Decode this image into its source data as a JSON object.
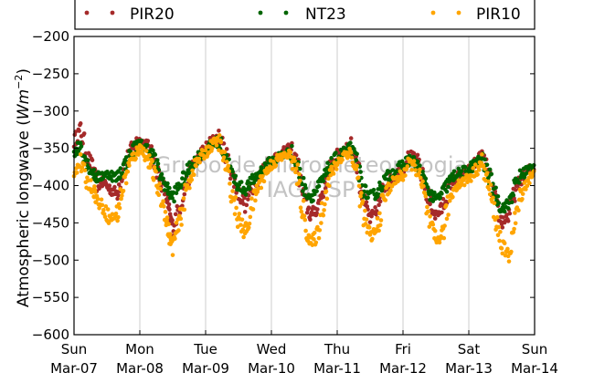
{
  "chart_data": {
    "type": "scatter",
    "title": "",
    "xlabel": "",
    "ylabel_text": "Atmospheric longwave (",
    "ylabel_unit_w": "W",
    "ylabel_unit_m": "m",
    "ylabel_unit_exp": "−2",
    "ylabel_close": ")",
    "ylim": [
      -600,
      -200
    ],
    "yticks": [
      -200,
      -250,
      -300,
      -350,
      -400,
      -450,
      -500,
      -550,
      -600
    ],
    "ytick_labels": [
      "−200",
      "−250",
      "−300",
      "−350",
      "−400",
      "−450",
      "−500",
      "−550",
      "−600"
    ],
    "xlim": [
      "2015-03-07",
      "2015-03-14"
    ],
    "xtick_labels": [
      {
        "day": "Sun",
        "date": "Mar-07"
      },
      {
        "day": "Mon",
        "date": "Mar-08"
      },
      {
        "day": "Tue",
        "date": "Mar-09"
      },
      {
        "day": "Wed",
        "date": "Mar-10"
      },
      {
        "day": "Thu",
        "date": "Mar-11"
      },
      {
        "day": "Fri",
        "date": "Mar-12"
      },
      {
        "day": "Sat",
        "date": "Mar-13"
      },
      {
        "day": "Sun",
        "date": "Mar-14"
      }
    ],
    "grid": "vertical",
    "legend_position": "top",
    "watermark": [
      "Grupo de Micrometeorologia",
      "IAG/USP"
    ],
    "series": [
      {
        "name": "PIR20",
        "color": "#a52a2a",
        "x_day": [
          0.0,
          0.1,
          0.2,
          0.3,
          0.35,
          0.45,
          0.55,
          0.65,
          0.75,
          0.85,
          0.95,
          1.0,
          1.1,
          1.2,
          1.3,
          1.4,
          1.45,
          1.5,
          1.6,
          1.7,
          1.8,
          1.9,
          2.0,
          2.1,
          2.2,
          2.3,
          2.4,
          2.5,
          2.6,
          2.7,
          2.8,
          2.9,
          3.0,
          3.1,
          3.2,
          3.3,
          3.4,
          3.5,
          3.6,
          3.7,
          3.8,
          3.9,
          4.0,
          4.1,
          4.2,
          4.3,
          4.4,
          4.5,
          4.6,
          4.7,
          4.8,
          4.9,
          5.0,
          5.1,
          5.2,
          5.3,
          5.4,
          5.5,
          5.6,
          5.7,
          5.8,
          5.9,
          6.0,
          6.1,
          6.2,
          6.3,
          6.4,
          6.5,
          6.6,
          6.7,
          6.8,
          6.9,
          7.0
        ],
        "y": [
          -340,
          -325,
          -360,
          -380,
          -400,
          -395,
          -405,
          -410,
          -380,
          -355,
          -340,
          -340,
          -345,
          -360,
          -390,
          -410,
          -440,
          -455,
          -430,
          -400,
          -375,
          -360,
          -350,
          -340,
          -335,
          -355,
          -385,
          -410,
          -425,
          -405,
          -390,
          -375,
          -365,
          -360,
          -355,
          -350,
          -375,
          -420,
          -440,
          -430,
          -400,
          -375,
          -360,
          -350,
          -345,
          -370,
          -420,
          -445,
          -435,
          -405,
          -390,
          -385,
          -375,
          -360,
          -365,
          -390,
          -420,
          -440,
          -430,
          -400,
          -390,
          -385,
          -380,
          -370,
          -360,
          -385,
          -420,
          -450,
          -440,
          -410,
          -390,
          -380,
          -375
        ]
      },
      {
        "name": "NT23",
        "color": "#006400",
        "x_day": [
          0.0,
          0.1,
          0.2,
          0.3,
          0.35,
          0.45,
          0.55,
          0.65,
          0.75,
          0.85,
          0.95,
          1.0,
          1.1,
          1.2,
          1.3,
          1.4,
          1.45,
          1.5,
          1.6,
          1.7,
          1.8,
          1.9,
          2.0,
          2.1,
          2.2,
          2.3,
          2.4,
          2.5,
          2.6,
          2.7,
          2.8,
          2.9,
          3.0,
          3.1,
          3.2,
          3.3,
          3.4,
          3.5,
          3.6,
          3.7,
          3.8,
          3.9,
          4.0,
          4.1,
          4.2,
          4.3,
          4.4,
          4.5,
          4.6,
          4.7,
          4.8,
          4.9,
          5.0,
          5.1,
          5.2,
          5.3,
          5.4,
          5.5,
          5.6,
          5.7,
          5.8,
          5.9,
          6.0,
          6.1,
          6.2,
          6.3,
          6.4,
          6.5,
          6.6,
          6.7,
          6.8,
          6.9,
          7.0
        ],
        "y": [
          -355,
          -345,
          -370,
          -385,
          -390,
          -385,
          -385,
          -390,
          -375,
          -360,
          -345,
          -345,
          -350,
          -360,
          -385,
          -400,
          -410,
          -415,
          -400,
          -385,
          -370,
          -360,
          -355,
          -345,
          -340,
          -360,
          -385,
          -400,
          -405,
          -395,
          -385,
          -375,
          -368,
          -362,
          -358,
          -355,
          -375,
          -405,
          -415,
          -405,
          -390,
          -372,
          -362,
          -355,
          -350,
          -370,
          -405,
          -415,
          -410,
          -395,
          -385,
          -380,
          -372,
          -365,
          -370,
          -390,
          -410,
          -420,
          -410,
          -395,
          -385,
          -382,
          -378,
          -370,
          -365,
          -385,
          -410,
          -430,
          -425,
          -400,
          -385,
          -378,
          -375
        ]
      },
      {
        "name": "PIR10",
        "color": "#ffa500",
        "x_day": [
          0.0,
          0.1,
          0.2,
          0.3,
          0.35,
          0.45,
          0.55,
          0.65,
          0.75,
          0.85,
          0.95,
          1.0,
          1.1,
          1.2,
          1.3,
          1.4,
          1.45,
          1.5,
          1.6,
          1.7,
          1.8,
          1.9,
          2.0,
          2.1,
          2.2,
          2.3,
          2.4,
          2.5,
          2.6,
          2.7,
          2.8,
          2.9,
          3.0,
          3.1,
          3.2,
          3.3,
          3.4,
          3.5,
          3.6,
          3.7,
          3.8,
          3.9,
          4.0,
          4.1,
          4.2,
          4.3,
          4.4,
          4.5,
          4.6,
          4.7,
          4.8,
          4.9,
          5.0,
          5.1,
          5.2,
          5.3,
          5.4,
          5.5,
          5.6,
          5.7,
          5.8,
          5.9,
          6.0,
          6.1,
          6.2,
          6.3,
          6.4,
          6.5,
          6.6,
          6.7,
          6.8,
          6.9,
          7.0
        ],
        "y": [
          -380,
          -370,
          -395,
          -405,
          -420,
          -430,
          -445,
          -440,
          -400,
          -370,
          -355,
          -350,
          -360,
          -380,
          -410,
          -440,
          -470,
          -480,
          -450,
          -410,
          -380,
          -365,
          -355,
          -345,
          -340,
          -370,
          -410,
          -445,
          -465,
          -430,
          -400,
          -385,
          -372,
          -365,
          -360,
          -358,
          -390,
          -445,
          -480,
          -465,
          -420,
          -385,
          -370,
          -358,
          -355,
          -385,
          -440,
          -470,
          -460,
          -420,
          -400,
          -392,
          -385,
          -370,
          -375,
          -405,
          -450,
          -475,
          -465,
          -420,
          -400,
          -395,
          -390,
          -380,
          -370,
          -400,
          -440,
          -480,
          -495,
          -450,
          -410,
          -392,
          -385
        ]
      }
    ]
  }
}
